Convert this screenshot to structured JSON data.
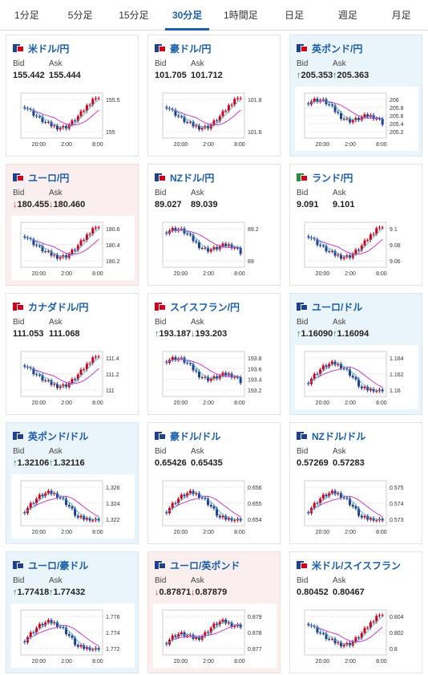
{
  "tabs": [
    {
      "label": "1分足"
    },
    {
      "label": "5分足"
    },
    {
      "label": "15分足"
    },
    {
      "label": "30分足",
      "active": true
    },
    {
      "label": "1時間足"
    },
    {
      "label": "日足"
    },
    {
      "label": "週足"
    },
    {
      "label": "月足"
    }
  ],
  "labels": {
    "bid": "Bid",
    "ask": "Ask"
  },
  "x_ticks": [
    "20:00",
    "2:00",
    "8:00"
  ],
  "colors": {
    "up_candle": "#d0021b",
    "down_candle": "#1f3f8f",
    "ma_long": "#c23fd0",
    "ma_short": "#39a9c9",
    "link": "#1a5ea8"
  },
  "cards": [
    {
      "pair": "米ドル/円",
      "flag": [
        "#1f3f8f",
        "#d0021b"
      ],
      "state": "none",
      "bid": "155.442",
      "ask": "155.444",
      "bid_dir": "",
      "ask_dir": "",
      "yticks": [
        "155.5",
        "155"
      ],
      "trend": "v"
    },
    {
      "pair": "豪ドル/円",
      "flag": [
        "#1f3f8f",
        "#d0021b"
      ],
      "state": "none",
      "bid": "101.705",
      "ask": "101.712",
      "bid_dir": "",
      "ask_dir": "",
      "yticks": [
        "101.8",
        "101.6"
      ],
      "trend": "v"
    },
    {
      "pair": "英ポンド/円",
      "flag": [
        "#1f3f8f",
        "#d0021b"
      ],
      "state": "up",
      "bid": "205.353",
      "ask": "205.363",
      "bid_dir": "↑",
      "ask_dir": "↑",
      "yticks": [
        "206",
        "205.8",
        "205.6",
        "205.4",
        "205.2"
      ],
      "trend": "down"
    },
    {
      "pair": "ユーロ/円",
      "flag": [
        "#1f3f8f",
        "#d0021b"
      ],
      "state": "down",
      "bid": "180.455",
      "ask": "180.460",
      "bid_dir": "↓",
      "ask_dir": "↓",
      "yticks": [
        "180.6",
        "180.4",
        "180.2"
      ],
      "trend": "v"
    },
    {
      "pair": "NZドル/円",
      "flag": [
        "#1f3f8f",
        "#d0021b"
      ],
      "state": "none",
      "bid": "89.027",
      "ask": "89.039",
      "bid_dir": "",
      "ask_dir": "",
      "yticks": [
        "89.2",
        "89"
      ],
      "trend": "down"
    },
    {
      "pair": "ランド/円",
      "flag": [
        "#2e8b3a",
        "#d0021b"
      ],
      "state": "none",
      "bid": "9.091",
      "ask": "9.101",
      "bid_dir": "",
      "ask_dir": "",
      "yticks": [
        "9.1",
        "9.08",
        "9.06"
      ],
      "trend": "v"
    },
    {
      "pair": "カナダドル/円",
      "flag": [
        "#d0021b",
        "#d0021b"
      ],
      "state": "none",
      "bid": "111.053",
      "ask": "111.068",
      "bid_dir": "",
      "ask_dir": "",
      "yticks": [
        "111.4",
        "111.2",
        "111"
      ],
      "trend": "v"
    },
    {
      "pair": "スイスフラン/円",
      "flag": [
        "#d0021b",
        "#d0021b"
      ],
      "state": "none",
      "bid": "193.187",
      "ask": "193.203",
      "bid_dir": "↑",
      "ask_dir": "↓",
      "yticks": [
        "193.8",
        "193.6",
        "193.4",
        "193.2"
      ],
      "trend": "down"
    },
    {
      "pair": "ユーロ/ドル",
      "flag": [
        "#1f3f8f",
        "#1f3f8f"
      ],
      "state": "up",
      "bid": "1.16090",
      "ask": "1.16094",
      "bid_dir": "↑",
      "ask_dir": "↑",
      "yticks": [
        "1.164",
        "1.162",
        "1.16"
      ],
      "trend": "hump"
    },
    {
      "pair": "英ポンド/ドル",
      "flag": [
        "#1f3f8f",
        "#1f3f8f"
      ],
      "state": "up",
      "bid": "1.32106",
      "ask": "1.32116",
      "bid_dir": "↑",
      "ask_dir": "↑",
      "yticks": [
        "1.326",
        "1.324",
        "1.322"
      ],
      "trend": "hump"
    },
    {
      "pair": "豪ドル/ドル",
      "flag": [
        "#1f3f8f",
        "#1f3f8f"
      ],
      "state": "none",
      "bid": "0.65426",
      "ask": "0.65435",
      "bid_dir": "",
      "ask_dir": "",
      "yticks": [
        "0.656",
        "0.655",
        "0.654"
      ],
      "trend": "hump"
    },
    {
      "pair": "NZドル/ドル",
      "flag": [
        "#1f3f8f",
        "#1f3f8f"
      ],
      "state": "none",
      "bid": "0.57269",
      "ask": "0.57283",
      "bid_dir": "",
      "ask_dir": "",
      "yticks": [
        "0.575",
        "0.574",
        "0.573"
      ],
      "trend": "hump"
    },
    {
      "pair": "ユーロ/豪ドル",
      "flag": [
        "#1f3f8f",
        "#1f3f8f"
      ],
      "state": "up",
      "bid": "1.77418",
      "ask": "1.77432",
      "bid_dir": "↑",
      "ask_dir": "↑",
      "yticks": [
        "1.776",
        "1.774",
        "1.772"
      ],
      "trend": "hump"
    },
    {
      "pair": "ユーロ/英ポンド",
      "flag": [
        "#1f3f8f",
        "#1f3f8f"
      ],
      "state": "down",
      "bid": "0.87871",
      "ask": "0.87879",
      "bid_dir": "↓",
      "ask_dir": "↓",
      "yticks": [
        "0.879",
        "0.878",
        "0.877"
      ],
      "trend": "up"
    },
    {
      "pair": "米ドル/スイスフラン",
      "flag": [
        "#1f3f8f",
        "#d0021b"
      ],
      "state": "none",
      "bid": "0.80452",
      "ask": "0.80467",
      "bid_dir": "",
      "ask_dir": "",
      "yticks": [
        "0.804",
        "0.802",
        "0.8"
      ],
      "trend": "v"
    }
  ]
}
